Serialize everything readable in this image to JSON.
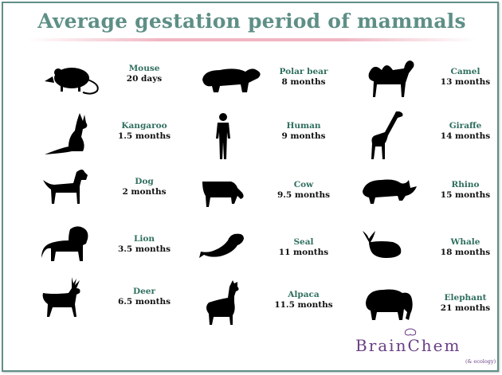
{
  "title": "Average gestation period of mammals",
  "colors": {
    "title": "#5e8f86",
    "name": "#2f6f5f",
    "brand": "#6a3f86"
  },
  "animals": [
    {
      "name": "Mouse",
      "period": "20 days",
      "icon": "mouse-icon"
    },
    {
      "name": "Polar bear",
      "period": "8 months",
      "icon": "polar-bear-icon"
    },
    {
      "name": "Camel",
      "period": "13 months",
      "icon": "camel-icon"
    },
    {
      "name": "Kangaroo",
      "period": "1.5 months",
      "icon": "kangaroo-icon"
    },
    {
      "name": "Human",
      "period": "9 months",
      "icon": "human-icon"
    },
    {
      "name": "Giraffe",
      "period": "14 months",
      "icon": "giraffe-icon"
    },
    {
      "name": "Dog",
      "period": "2 months",
      "icon": "dog-icon"
    },
    {
      "name": "Cow",
      "period": "9.5 months",
      "icon": "cow-icon"
    },
    {
      "name": "Rhino",
      "period": "15 months",
      "icon": "rhino-icon"
    },
    {
      "name": "Lion",
      "period": "3.5 months",
      "icon": "lion-icon"
    },
    {
      "name": "Seal",
      "period": "11 months",
      "icon": "seal-icon"
    },
    {
      "name": "Whale",
      "period": "18 months",
      "icon": "whale-icon"
    },
    {
      "name": "Deer",
      "period": "6.5 months",
      "icon": "deer-icon"
    },
    {
      "name": "Alpaca",
      "period": "11.5 months",
      "icon": "alpaca-icon"
    },
    {
      "name": "Elephant",
      "period": "21 months",
      "icon": "elephant-icon"
    }
  ],
  "logo": {
    "brand": "BrainChem",
    "tagline": "(& ecology)"
  }
}
